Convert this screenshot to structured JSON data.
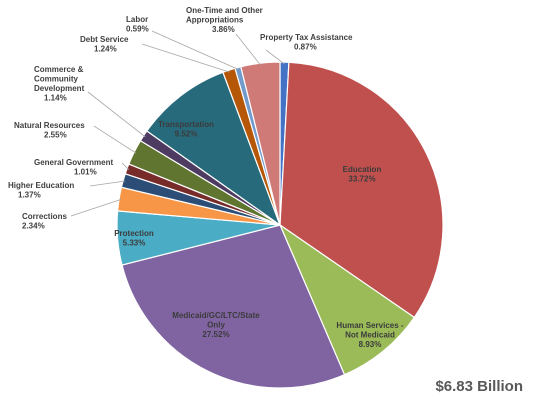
{
  "chart_data": {
    "type": "pie",
    "total_label": "$6.83 Billion",
    "series": [
      {
        "name": "Property Tax Assistance",
        "value": 0.87,
        "value_label": "0.87%",
        "color": "#4472c4"
      },
      {
        "name": "Education",
        "value": 33.72,
        "value_label": "33.72%",
        "color": "#c0504d"
      },
      {
        "name": "Human Services - Not Medicaid",
        "value": 8.93,
        "value_label": "8.93%",
        "color": "#9bbb59"
      },
      {
        "name": "Medicaid/GC/LTC/State Only",
        "value": 27.52,
        "value_label": "27.52%",
        "color": "#8064a2"
      },
      {
        "name": "Protection",
        "value": 5.33,
        "value_label": "5.33%",
        "color": "#4bacc6"
      },
      {
        "name": "Corrections",
        "value": 2.34,
        "value_label": "2.34%",
        "color": "#f79646"
      },
      {
        "name": "Higher Education",
        "value": 1.37,
        "value_label": "1.37%",
        "color": "#2c4d75"
      },
      {
        "name": "General Government",
        "value": 1.01,
        "value_label": "1.01%",
        "color": "#772c2a"
      },
      {
        "name": "Natural Resources",
        "value": 2.55,
        "value_label": "2.55%",
        "color": "#5f7530"
      },
      {
        "name": "Commerce & Community Development",
        "value": 1.14,
        "value_label": "1.14%",
        "color": "#4d3b62"
      },
      {
        "name": "Transportation",
        "value": 9.52,
        "value_label": "9.52%",
        "color": "#276a7c"
      },
      {
        "name": "Debt Service",
        "value": 1.24,
        "value_label": "1.24%",
        "color": "#b65708"
      },
      {
        "name": "Labor",
        "value": 0.59,
        "value_label": "0.59%",
        "color": "#729aca"
      },
      {
        "name": "One-Time and Other Appropriations",
        "value": 3.86,
        "value_label": "3.86%",
        "color": "#d07a78"
      }
    ]
  }
}
